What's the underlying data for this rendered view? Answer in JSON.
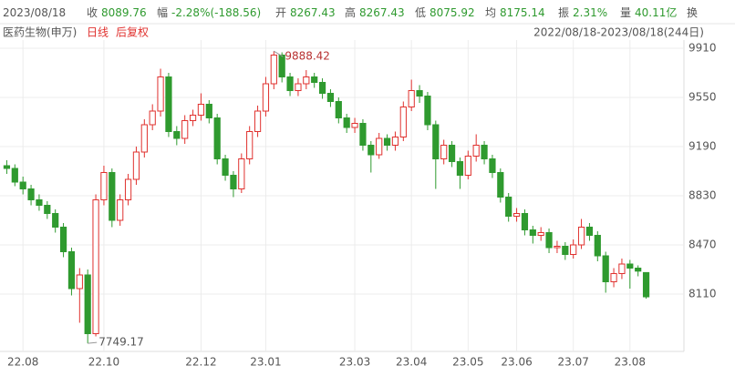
{
  "header": {
    "items": [
      {
        "value": "2023/08/18"
      },
      {
        "label": "收",
        "value": "8089.76"
      },
      {
        "label": "幅",
        "value": "-2.28%(-188.56)"
      },
      {
        "label": "开",
        "value": "8267.43"
      },
      {
        "label": "高",
        "value": "8267.43"
      },
      {
        "label": "低",
        "value": "8075.92"
      },
      {
        "label": "均",
        "value": "8175.14"
      },
      {
        "label": "振",
        "value": "2.31%"
      },
      {
        "label": "量",
        "value": "40.11亿"
      },
      {
        "label": "换"
      }
    ],
    "name": "医药生物(申万)",
    "period": "日线",
    "adjust": "后复权",
    "range": "2022/08/18-2023/08/18(244日)"
  },
  "chart_data": {
    "type": "candlestick",
    "up_color": "#e0312e",
    "down_color": "#2f9a2f",
    "grid": true,
    "ylim": [
      7700,
      9970
    ],
    "yticks": [
      8110,
      8470,
      8830,
      9190,
      9550,
      9910
    ],
    "categories": [
      null,
      null,
      "22.08",
      null,
      null,
      null,
      null,
      null,
      null,
      null,
      null,
      null,
      "22.10",
      null,
      null,
      null,
      null,
      null,
      null,
      null,
      null,
      null,
      null,
      null,
      "22.12",
      null,
      null,
      null,
      null,
      null,
      null,
      null,
      "23.01",
      null,
      null,
      null,
      null,
      null,
      null,
      null,
      null,
      null,
      null,
      "23.03",
      null,
      null,
      null,
      null,
      null,
      null,
      "23.04",
      null,
      null,
      null,
      null,
      null,
      null,
      "23.05",
      null,
      null,
      null,
      null,
      null,
      "23.06",
      null,
      null,
      null,
      null,
      null,
      null,
      "23.07",
      null,
      null,
      null,
      null,
      null,
      null,
      "23.08",
      null,
      null
    ],
    "open": [
      9050,
      9030,
      8930,
      8880,
      8800,
      8760,
      8700,
      8600,
      8420,
      8150,
      8250,
      7820,
      8800,
      9000,
      8650,
      8800,
      8950,
      9150,
      9350,
      9450,
      9700,
      9300,
      9250,
      9380,
      9420,
      9500,
      9400,
      9100,
      8980,
      8880,
      9100,
      9300,
      9450,
      9650,
      9860,
      9700,
      9600,
      9650,
      9700,
      9660,
      9580,
      9520,
      9400,
      9330,
      9360,
      9200,
      9130,
      9250,
      9200,
      9260,
      9480,
      9600,
      9560,
      9350,
      9100,
      9200,
      9080,
      8980,
      9120,
      9200,
      9100,
      9000,
      8820,
      8680,
      8700,
      8580,
      8540,
      8560,
      8450,
      8460,
      8400,
      8470,
      8600,
      8540,
      8390,
      8200,
      8260,
      8330,
      8300,
      8267.43
    ],
    "high": [
      9090,
      9060,
      8970,
      8910,
      8840,
      8790,
      8730,
      8630,
      8450,
      8300,
      8290,
      8840,
      9050,
      9030,
      8840,
      8990,
      9190,
      9390,
      9500,
      9760,
      9730,
      9340,
      9420,
      9460,
      9580,
      9530,
      9430,
      9130,
      9010,
      9140,
      9340,
      9490,
      9700,
      9888.42,
      9880,
      9730,
      9690,
      9750,
      9730,
      9690,
      9610,
      9550,
      9430,
      9400,
      9390,
      9230,
      9290,
      9280,
      9300,
      9520,
      9680,
      9640,
      9590,
      9380,
      9240,
      9230,
      9110,
      9160,
      9280,
      9230,
      9130,
      9030,
      8850,
      8740,
      8730,
      8610,
      8600,
      8590,
      8500,
      8490,
      8510,
      8660,
      8630,
      8570,
      8420,
      8300,
      8370,
      8360,
      8320,
      8267.43
    ],
    "low": [
      8990,
      8900,
      8840,
      8760,
      8720,
      8660,
      8560,
      8380,
      8100,
      7900,
      7749.17,
      7800,
      8760,
      8600,
      8610,
      8760,
      8910,
      9110,
      9310,
      9410,
      9260,
      9200,
      9210,
      9340,
      9380,
      9360,
      9060,
      8940,
      8820,
      8850,
      9060,
      9260,
      9410,
      9610,
      9660,
      9560,
      9560,
      9610,
      9620,
      9540,
      9480,
      9360,
      9290,
      9290,
      9160,
      9000,
      9100,
      9160,
      9160,
      9230,
      9450,
      9510,
      9310,
      8880,
      9060,
      9040,
      8880,
      8950,
      9080,
      9060,
      8960,
      8780,
      8640,
      8640,
      8540,
      8480,
      8500,
      8410,
      8410,
      8360,
      8370,
      8440,
      8500,
      8350,
      8120,
      8160,
      8220,
      8150,
      8240,
      8075.92
    ],
    "close": [
      9030,
      8930,
      8880,
      8800,
      8760,
      8700,
      8600,
      8420,
      8150,
      8250,
      7820,
      8800,
      9000,
      8650,
      8800,
      8950,
      9150,
      9350,
      9450,
      9700,
      9300,
      9250,
      9380,
      9420,
      9500,
      9400,
      9100,
      8980,
      8880,
      9100,
      9300,
      9450,
      9650,
      9860,
      9700,
      9600,
      9650,
      9700,
      9660,
      9580,
      9520,
      9400,
      9330,
      9360,
      9200,
      9130,
      9250,
      9200,
      9260,
      9480,
      9600,
      9560,
      9350,
      9100,
      9200,
      9080,
      8980,
      9120,
      9200,
      9100,
      9000,
      8820,
      8680,
      8700,
      8580,
      8540,
      8560,
      8450,
      8460,
      8400,
      8470,
      8600,
      8540,
      8390,
      8200,
      8260,
      8330,
      8300,
      8278,
      8089.76
    ]
  }
}
